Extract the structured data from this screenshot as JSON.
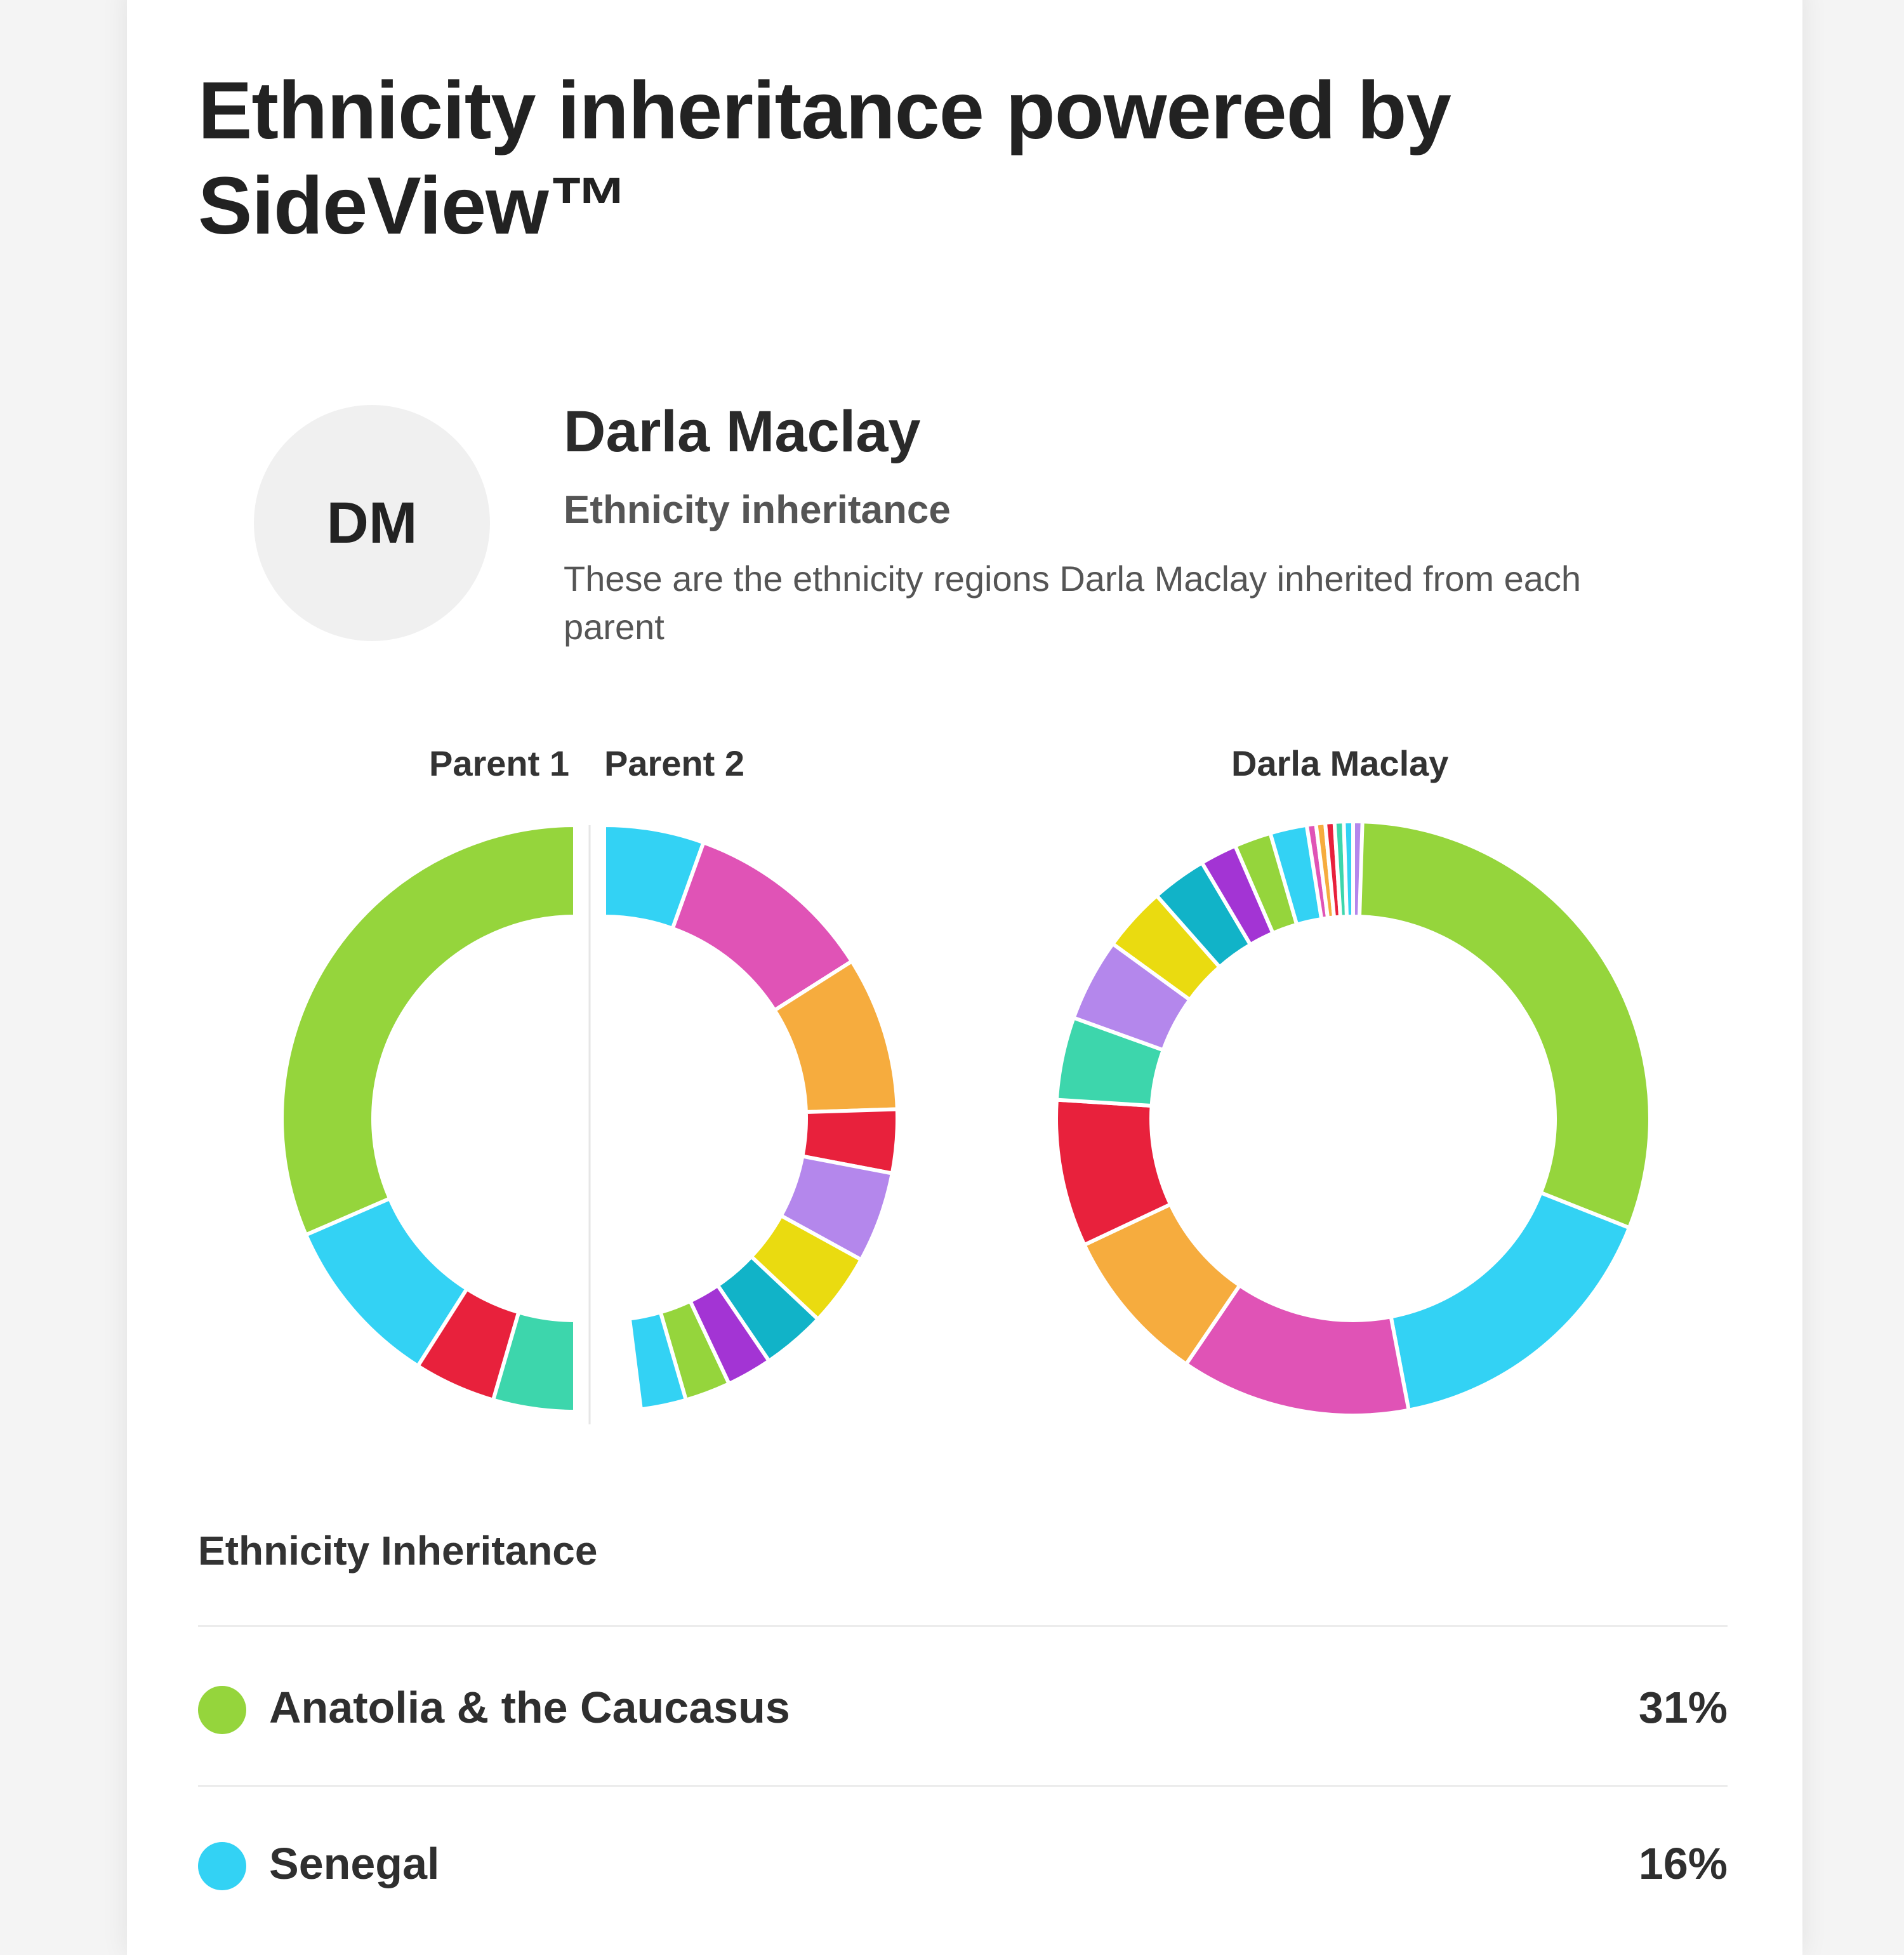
{
  "header": {
    "title": "Ethnicity inheritance powered by SideView™"
  },
  "profile": {
    "initials": "DM",
    "name": "Darla Maclay",
    "subtitle": "Ethnicity inheritance",
    "description": "These are the ethnicity regions Darla Maclay inherited from each parent"
  },
  "charts": {
    "parent1_label": "Parent 1",
    "parent2_label": "Parent 2",
    "child_label": "Darla Maclay"
  },
  "chart_data": [
    {
      "type": "pie",
      "label": "Parent 1",
      "slices": [
        {
          "color": "#95d53c",
          "value": 0.315
        },
        {
          "color": "#33d2f4",
          "value": 0.095
        },
        {
          "color": "#e8213c",
          "value": 0.045
        },
        {
          "color": "#3dd6ac",
          "value": 0.045
        }
      ]
    },
    {
      "type": "pie",
      "label": "Parent 2",
      "slices": [
        {
          "color": "#33d2f4",
          "value": 0.055
        },
        {
          "color": "#e053b6",
          "value": 0.105
        },
        {
          "color": "#f6ac3e",
          "value": 0.085
        },
        {
          "color": "#e8213c",
          "value": 0.035
        },
        {
          "color": "#b487ec",
          "value": 0.05
        },
        {
          "color": "#eadb10",
          "value": 0.04
        },
        {
          "color": "#11b3c8",
          "value": 0.035
        },
        {
          "color": "#a334d4",
          "value": 0.025
        },
        {
          "color": "#95d53c",
          "value": 0.025
        },
        {
          "color": "#33d2f4",
          "value": 0.025
        }
      ]
    },
    {
      "type": "pie",
      "label": "Darla Maclay",
      "slices": [
        {
          "color": "#95d53c",
          "value": 0.31
        },
        {
          "color": "#33d2f4",
          "value": 0.16
        },
        {
          "color": "#e053b6",
          "value": 0.125
        },
        {
          "color": "#f6ac3e",
          "value": 0.085
        },
        {
          "color": "#e8213c",
          "value": 0.08
        },
        {
          "color": "#3dd6ac",
          "value": 0.045
        },
        {
          "color": "#b487ec",
          "value": 0.045
        },
        {
          "color": "#eadb10",
          "value": 0.035
        },
        {
          "color": "#11b3c8",
          "value": 0.03
        },
        {
          "color": "#a334d4",
          "value": 0.02
        },
        {
          "color": "#95d53c",
          "value": 0.02
        },
        {
          "color": "#33d2f4",
          "value": 0.02
        },
        {
          "color": "#e053b6",
          "value": 0.005
        },
        {
          "color": "#f6ac3e",
          "value": 0.005
        },
        {
          "color": "#e8213c",
          "value": 0.005
        },
        {
          "color": "#3dd6ac",
          "value": 0.005
        },
        {
          "color": "#33d2f4",
          "value": 0.005
        },
        {
          "color": "#b487ec",
          "value": 0.005
        }
      ]
    }
  ],
  "list": {
    "title": "Ethnicity Inheritance",
    "items": [
      {
        "color": "#95d53c",
        "name": "Anatolia & the Caucasus",
        "percent": "31%"
      },
      {
        "color": "#33d2f4",
        "name": "Senegal",
        "percent": "16%"
      }
    ]
  }
}
